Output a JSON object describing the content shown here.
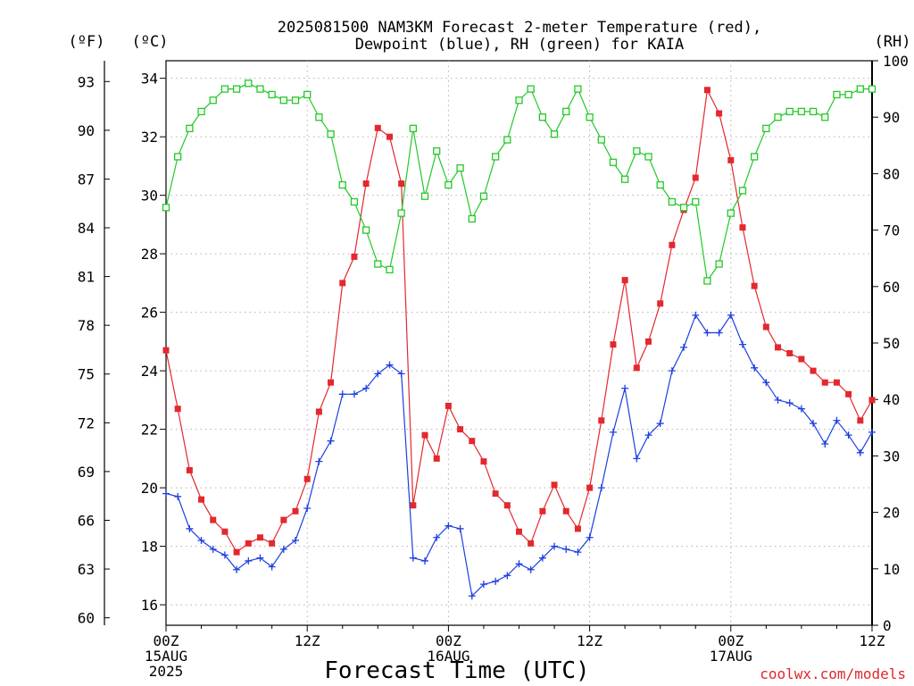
{
  "title": {
    "line1": "2025081500 NAM3KM Forecast 2-meter Temperature (red),",
    "line2": "Dewpoint (blue), RH (green) for KAIA"
  },
  "axes": {
    "left_f_unit": "(ºF)",
    "left_c_unit": "(ºC)",
    "right_unit": "(RH)",
    "f_ticks": [
      "60",
      "63",
      "66",
      "69",
      "72",
      "75",
      "78",
      "81",
      "84",
      "87",
      "90",
      "93"
    ],
    "x_label": "Forecast Time (UTC)",
    "x_ticks": [
      {
        "hour": 0,
        "l1": "00Z",
        "l2": "15AUG",
        "l3": "2025"
      },
      {
        "hour": 12,
        "l1": "12Z",
        "l2": "",
        "l3": ""
      },
      {
        "hour": 24,
        "l1": "00Z",
        "l2": "16AUG",
        "l3": ""
      },
      {
        "hour": 36,
        "l1": "12Z",
        "l2": "",
        "l3": ""
      },
      {
        "hour": 48,
        "l1": "00Z",
        "l2": "17AUG",
        "l3": ""
      },
      {
        "hour": 60,
        "l1": "12Z",
        "l2": "",
        "l3": ""
      }
    ]
  },
  "credit": "coolwx.com/models",
  "chart_data": {
    "type": "line",
    "x_unit": "forecast hour from 2025-08-15 00Z",
    "xlim": [
      0,
      60
    ],
    "ylim_c": [
      15.3,
      34.6
    ],
    "ylim_rh": [
      0,
      100
    ],
    "c_ticks": [
      16,
      18,
      20,
      22,
      24,
      26,
      28,
      30,
      32,
      34
    ],
    "rh_ticks": [
      0,
      10,
      20,
      30,
      40,
      50,
      60,
      70,
      80,
      90,
      100
    ],
    "grid": true,
    "hours": [
      0,
      1,
      2,
      3,
      4,
      5,
      6,
      7,
      8,
      9,
      10,
      11,
      12,
      13,
      14,
      15,
      16,
      17,
      18,
      19,
      20,
      21,
      22,
      23,
      24,
      25,
      26,
      27,
      28,
      29,
      30,
      31,
      32,
      33,
      34,
      35,
      36,
      37,
      38,
      39,
      40,
      41,
      42,
      43,
      44,
      45,
      46,
      47,
      48,
      49,
      50,
      51,
      52,
      53,
      54,
      55,
      56,
      57,
      58,
      59,
      60
    ],
    "series": [
      {
        "name": "Temperature (red)",
        "axis": "celsius",
        "color": "#e3282e",
        "marker": "filled-square",
        "values": [
          24.7,
          22.7,
          20.6,
          19.6,
          18.9,
          18.5,
          17.8,
          18.1,
          18.3,
          18.1,
          18.9,
          19.2,
          20.3,
          22.6,
          23.6,
          27.0,
          27.9,
          30.4,
          32.3,
          32.0,
          30.4,
          19.4,
          21.8,
          21.0,
          22.8,
          22.0,
          21.6,
          20.9,
          19.8,
          19.4,
          18.5,
          18.1,
          19.2,
          20.1,
          19.2,
          18.6,
          20.0,
          22.3,
          24.9,
          27.1,
          24.1,
          25.0,
          26.3,
          28.3,
          29.5,
          30.6,
          33.6,
          32.8,
          31.2,
          28.9,
          26.9,
          25.5,
          24.8,
          24.6,
          24.4,
          24.0,
          23.6,
          23.6,
          23.2,
          22.3,
          23.0
        ]
      },
      {
        "name": "Dewpoint (blue)",
        "axis": "celsius",
        "color": "#1d3fe0",
        "marker": "plus",
        "values": [
          19.8,
          19.7,
          18.6,
          18.2,
          17.9,
          17.7,
          17.2,
          17.5,
          17.6,
          17.3,
          17.9,
          18.2,
          19.3,
          20.9,
          21.6,
          23.2,
          23.2,
          23.4,
          23.9,
          24.2,
          23.9,
          17.6,
          17.5,
          18.3,
          18.7,
          18.6,
          16.3,
          16.7,
          16.8,
          17.0,
          17.4,
          17.2,
          17.6,
          18.0,
          17.9,
          17.8,
          18.3,
          20.0,
          21.9,
          23.4,
          21.0,
          21.8,
          22.2,
          24.0,
          24.8,
          25.9,
          25.3,
          25.3,
          25.9,
          24.9,
          24.1,
          23.6,
          23.0,
          22.9,
          22.7,
          22.2,
          21.5,
          22.3,
          21.8,
          21.2,
          21.9
        ]
      },
      {
        "name": "RH (green)",
        "axis": "rh",
        "color": "#22c927",
        "marker": "open-square",
        "values": [
          74,
          83,
          88,
          91,
          93,
          95,
          95,
          96,
          95,
          94,
          93,
          93,
          94,
          90,
          87,
          78,
          75,
          70,
          64,
          63,
          73,
          88,
          76,
          84,
          78,
          81,
          72,
          76,
          83,
          86,
          93,
          95,
          90,
          87,
          91,
          95,
          90,
          86,
          82,
          79,
          84,
          83,
          78,
          75,
          74,
          75,
          61,
          64,
          73,
          77,
          83,
          88,
          90,
          91,
          91,
          91,
          90,
          94,
          94,
          95,
          95
        ]
      }
    ]
  }
}
